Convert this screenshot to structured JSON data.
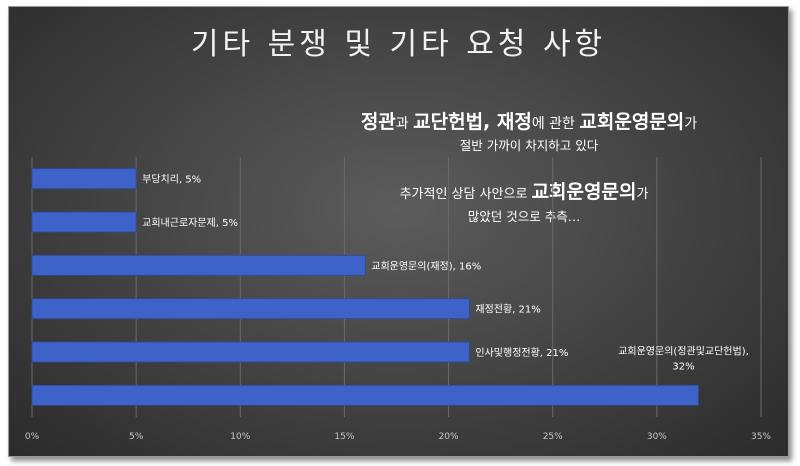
{
  "title": "기타 분쟁 및 기타 요청 사항",
  "notes": {
    "n1_a": "정관",
    "n1_b": "과 ",
    "n1_c": "교단헌법, 재정",
    "n1_d": "에 관한 ",
    "n1_e": "교회운영문의",
    "n1_f": "가",
    "n1_line2": "절반 가까이 차지하고 있다",
    "n2_a": "추가적인 상담 사안으로 ",
    "n2_b": "교회운영문의",
    "n2_c": "가",
    "n2_line2": "많았던 것으로 추측…"
  },
  "colors": {
    "bar": "#3d63c9",
    "bar_edge": "#2a4a9a",
    "grid": "#6a6a6a"
  },
  "chart_data": {
    "type": "bar",
    "orientation": "horizontal",
    "categories": [
      "부당치리",
      "교회내근로자문제",
      "교회운영문의(재정)",
      "재정전황",
      "인사및행정전황",
      "교회운영문의(정관및교단헌법)"
    ],
    "values": [
      5,
      5,
      16,
      21,
      21,
      32
    ],
    "data_labels": [
      "부당치리, 5%",
      "교회내근로자문제, 5%",
      "교회운영문의(재정), 16%",
      "재정전황, 21%",
      "인사및행정전황, 21%",
      "교회운영문의(정관및교단헌법),|32%"
    ],
    "xlim": [
      0,
      35
    ],
    "x_ticks": [
      "0%",
      "5%",
      "10%",
      "15%",
      "20%",
      "25%",
      "30%",
      "35%"
    ],
    "grid": true,
    "legend": "none"
  }
}
